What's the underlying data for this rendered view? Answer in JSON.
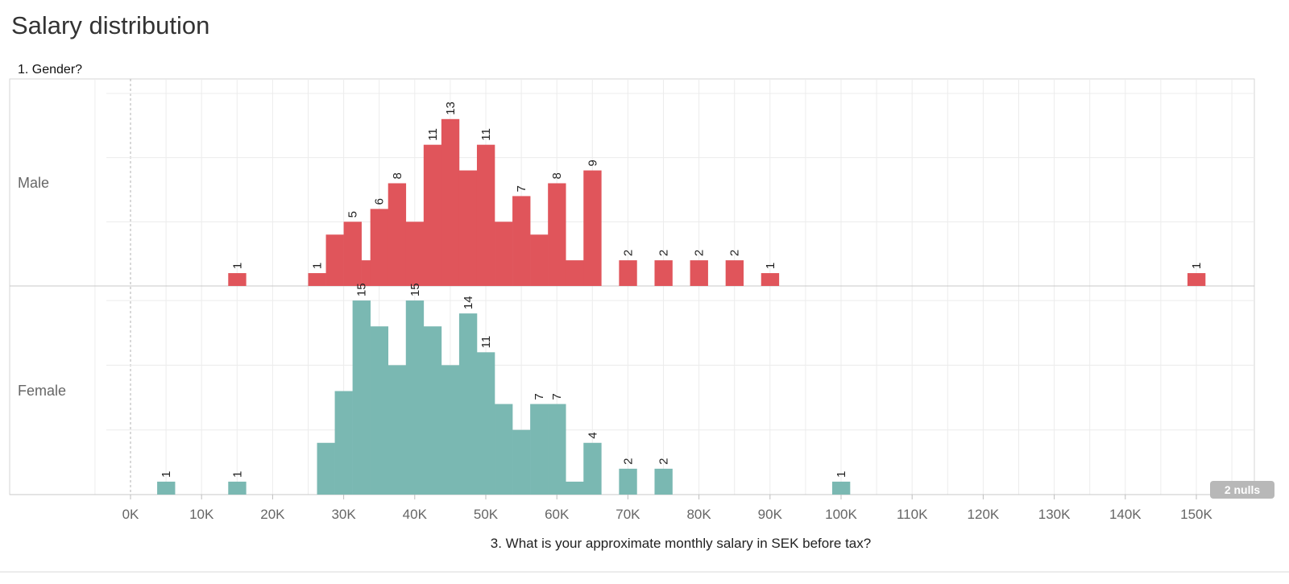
{
  "title": "Salary distribution",
  "header": "1. Gender?",
  "nulls_badge": "2 nulls",
  "chart_data": {
    "type": "bar",
    "xlabel": "3. What is your approximate monthly salary in SEK before tax?",
    "xlim": [
      -3500,
      157000
    ],
    "x_ticks": [
      "0K",
      "10K",
      "20K",
      "30K",
      "40K",
      "50K",
      "60K",
      "70K",
      "80K",
      "90K",
      "100K",
      "110K",
      "120K",
      "130K",
      "140K",
      "150K"
    ],
    "bin_width": 2500,
    "ylim": [
      0,
      16
    ],
    "grid": true,
    "series": [
      {
        "name": "Male",
        "color": "#e0555b",
        "x": [
          15000,
          26250,
          28750,
          31250,
          33750,
          35000,
          37500,
          40000,
          42500,
          45000,
          47500,
          50000,
          52500,
          55000,
          57500,
          60000,
          62500,
          65000,
          70000,
          75000,
          80000,
          85000,
          90000,
          150000
        ],
        "values": [
          1,
          1,
          4,
          5,
          2,
          6,
          8,
          5,
          11,
          13,
          9,
          11,
          5,
          7,
          4,
          8,
          2,
          9,
          2,
          2,
          2,
          2,
          1,
          1
        ],
        "labels": [
          1,
          1,
          null,
          5,
          null,
          6,
          8,
          null,
          11,
          13,
          null,
          11,
          null,
          7,
          null,
          8,
          null,
          9,
          2,
          2,
          2,
          2,
          1,
          1
        ]
      },
      {
        "name": "Female",
        "color": "#7ab8b2",
        "x": [
          5000,
          15000,
          27500,
          30000,
          32500,
          35000,
          37500,
          40000,
          42500,
          45000,
          47500,
          50000,
          52500,
          55000,
          57500,
          60000,
          62500,
          65000,
          70000,
          75000,
          100000
        ],
        "values": [
          1,
          1,
          4,
          8,
          15,
          13,
          10,
          15,
          13,
          10,
          14,
          11,
          7,
          5,
          7,
          7,
          1,
          4,
          2,
          2,
          1
        ],
        "labels": [
          1,
          1,
          null,
          null,
          15,
          null,
          null,
          15,
          null,
          null,
          14,
          11,
          null,
          null,
          7,
          7,
          null,
          4,
          2,
          2,
          1
        ]
      }
    ]
  }
}
